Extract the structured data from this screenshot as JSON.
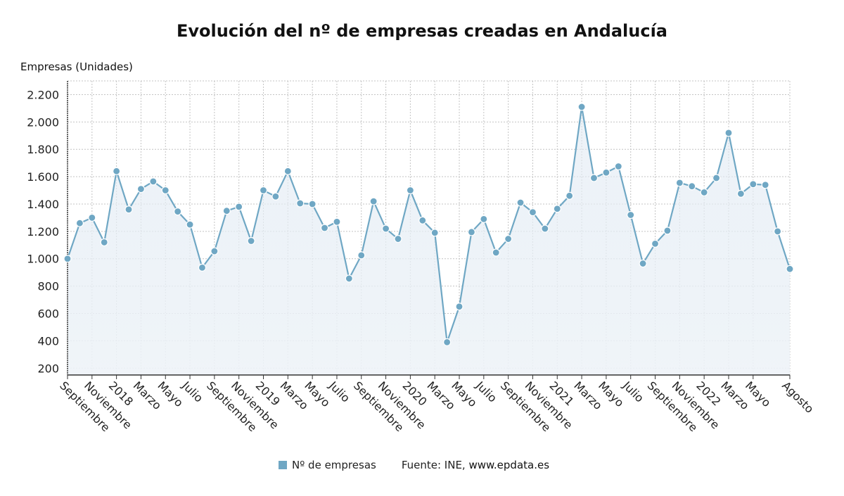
{
  "chart_data": {
    "type": "line",
    "title": "Evolución del nº de empresas creadas en Andalucía",
    "ylabel": "Empresas (Unidades)",
    "ylim": [
      150,
      2300
    ],
    "yticks": [
      200,
      400,
      600,
      800,
      1000,
      1200,
      1400,
      1600,
      1800,
      2000,
      2200
    ],
    "ytick_labels": [
      "200",
      "400",
      "600",
      "800",
      "1.000",
      "1.200",
      "1.400",
      "1.600",
      "1.800",
      "2.000",
      "2.200"
    ],
    "grid": true,
    "legend_position": "bottom",
    "x_labels": [
      {
        "index": 0,
        "label": "Septiembre"
      },
      {
        "index": 2,
        "label": "Noviembre"
      },
      {
        "index": 4,
        "label": "2018"
      },
      {
        "index": 6,
        "label": "Marzo"
      },
      {
        "index": 8,
        "label": "Mayo"
      },
      {
        "index": 10,
        "label": "Julio"
      },
      {
        "index": 12,
        "label": "Septiembre"
      },
      {
        "index": 14,
        "label": "Noviembre"
      },
      {
        "index": 16,
        "label": "2019"
      },
      {
        "index": 18,
        "label": "Marzo"
      },
      {
        "index": 20,
        "label": "Mayo"
      },
      {
        "index": 22,
        "label": "Julio"
      },
      {
        "index": 24,
        "label": "Septiembre"
      },
      {
        "index": 26,
        "label": "Noviembre"
      },
      {
        "index": 28,
        "label": "2020"
      },
      {
        "index": 30,
        "label": "Marzo"
      },
      {
        "index": 32,
        "label": "Mayo"
      },
      {
        "index": 34,
        "label": "Julio"
      },
      {
        "index": 36,
        "label": "Septiembre"
      },
      {
        "index": 38,
        "label": "Noviembre"
      },
      {
        "index": 40,
        "label": "2021"
      },
      {
        "index": 42,
        "label": "Marzo"
      },
      {
        "index": 44,
        "label": "Mayo"
      },
      {
        "index": 46,
        "label": "Julio"
      },
      {
        "index": 48,
        "label": "Septiembre"
      },
      {
        "index": 50,
        "label": "Noviembre"
      },
      {
        "index": 52,
        "label": "2022"
      },
      {
        "index": 54,
        "label": "Marzo"
      },
      {
        "index": 56,
        "label": "Mayo"
      },
      {
        "index": 59,
        "label": "Agosto"
      }
    ],
    "series": [
      {
        "name": "Nº de empresas",
        "color": "#6fa7c4",
        "values": [
          1000,
          1260,
          1300,
          1120,
          1640,
          1360,
          1510,
          1565,
          1500,
          1345,
          1250,
          935,
          1055,
          1350,
          1380,
          1130,
          1500,
          1455,
          1640,
          1405,
          1400,
          1225,
          1270,
          855,
          1025,
          1420,
          1220,
          1145,
          1500,
          1280,
          1190,
          390,
          650,
          1195,
          1290,
          1045,
          1145,
          1410,
          1340,
          1220,
          1365,
          1460,
          2110,
          1590,
          1630,
          1675,
          1320,
          965,
          1110,
          1205,
          1555,
          1530,
          1485,
          1590,
          1920,
          1475,
          1545,
          1540,
          1200,
          925
        ]
      }
    ]
  },
  "legend": {
    "series_label": "Nº de empresas"
  },
  "source": {
    "prefix": "Fuente: INE,",
    "site": "www.epdata.es"
  }
}
